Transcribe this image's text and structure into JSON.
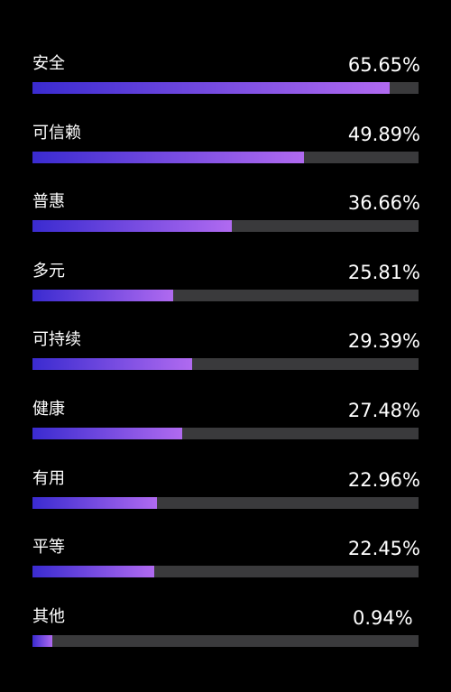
{
  "chart_data": {
    "type": "bar",
    "orientation": "horizontal",
    "title": "",
    "xlabel": "",
    "ylabel": "",
    "xlim": [
      0,
      71
    ],
    "grid": false,
    "colors": {
      "background": "#000000",
      "track": "#3a3a3c",
      "bar_start": "#3a2bd0",
      "bar_end": "#b06af0",
      "text": "#ffffff"
    },
    "categories": [
      "安全",
      "可信赖",
      "普惠",
      "多元",
      "可持续",
      "健康",
      "有用",
      "平等",
      "其他"
    ],
    "values": [
      65.65,
      49.89,
      36.66,
      25.81,
      29.39,
      27.48,
      22.96,
      22.45,
      0.94
    ],
    "value_labels": [
      "65.65%",
      "49.89%",
      "36.66%",
      "25.81%",
      "29.39%",
      "27.48%",
      "22.96%",
      "22.45%",
      "0.94%"
    ]
  }
}
